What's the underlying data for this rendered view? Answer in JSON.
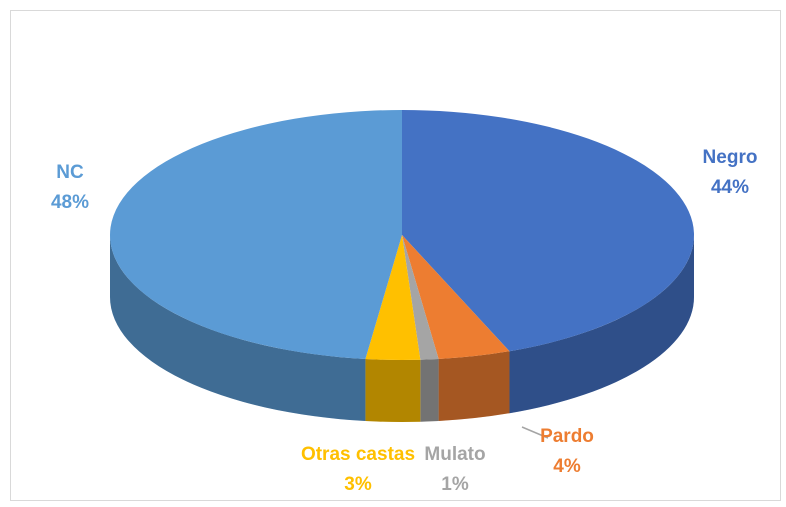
{
  "chart_data": {
    "type": "pie",
    "categories": [
      "Negro",
      "Pardo",
      "Mulato",
      "Otras castas",
      "NC"
    ],
    "values": [
      44,
      4,
      1,
      3,
      48
    ],
    "value_labels": [
      "44%",
      "4%",
      "1%",
      "3%",
      "48%"
    ],
    "colors": [
      "#4472c4",
      "#ed7d31",
      "#a5a5a5",
      "#ffc000",
      "#5b9bd5"
    ]
  }
}
